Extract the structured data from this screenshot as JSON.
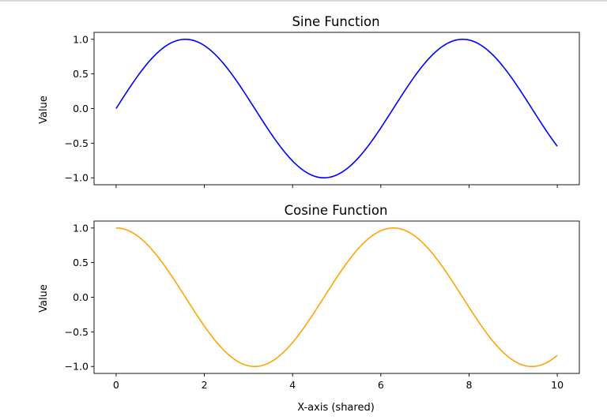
{
  "chart_data": [
    {
      "type": "line",
      "title": "Sine Function",
      "xlabel": "",
      "ylabel": "Value",
      "xlim": [
        -0.5,
        10.5
      ],
      "ylim": [
        -1.1,
        1.1
      ],
      "xticks": [
        0,
        2,
        4,
        6,
        8,
        10
      ],
      "xtick_labels_visible": false,
      "yticks": [
        -1.0,
        -0.5,
        0.0,
        0.5,
        1.0
      ],
      "ytick_labels": [
        "−1.0",
        "−0.5",
        "0.0",
        "0.5",
        "1.0"
      ],
      "grid": false,
      "series": [
        {
          "function": "sin(x)",
          "color": "#0000ff",
          "x": [
            0.0,
            0.5,
            1.0,
            1.5,
            2.0,
            2.5,
            3.0,
            3.5,
            4.0,
            4.5,
            5.0,
            5.5,
            6.0,
            6.5,
            7.0,
            7.5,
            8.0,
            8.5,
            9.0,
            9.5,
            10.0
          ],
          "y": [
            0.0,
            0.479,
            0.841,
            0.997,
            0.909,
            0.598,
            0.141,
            -0.351,
            -0.757,
            -0.978,
            -0.959,
            -0.706,
            -0.279,
            0.215,
            0.657,
            0.938,
            0.989,
            0.798,
            0.412,
            -0.075,
            -0.544
          ]
        }
      ]
    },
    {
      "type": "line",
      "title": "Cosine Function",
      "xlabel": "X-axis (shared)",
      "ylabel": "Value",
      "xlim": [
        -0.5,
        10.5
      ],
      "ylim": [
        -1.1,
        1.1
      ],
      "xticks": [
        0,
        2,
        4,
        6,
        8,
        10
      ],
      "xtick_labels": [
        "0",
        "2",
        "4",
        "6",
        "8",
        "10"
      ],
      "yticks": [
        -1.0,
        -0.5,
        0.0,
        0.5,
        1.0
      ],
      "ytick_labels": [
        "−1.0",
        "−0.5",
        "0.0",
        "0.5",
        "1.0"
      ],
      "grid": false,
      "series": [
        {
          "function": "cos(x)",
          "color": "#ffa500",
          "x": [
            0.0,
            0.5,
            1.0,
            1.5,
            2.0,
            2.5,
            3.0,
            3.5,
            4.0,
            4.5,
            5.0,
            5.5,
            6.0,
            6.5,
            7.0,
            7.5,
            8.0,
            8.5,
            9.0,
            9.5,
            10.0
          ],
          "y": [
            1.0,
            0.878,
            0.54,
            0.071,
            -0.416,
            -0.801,
            -0.99,
            -0.936,
            -0.654,
            -0.211,
            0.284,
            0.709,
            0.96,
            0.977,
            0.754,
            0.347,
            -0.146,
            -0.602,
            -0.911,
            -0.997,
            -0.839
          ]
        }
      ]
    }
  ]
}
